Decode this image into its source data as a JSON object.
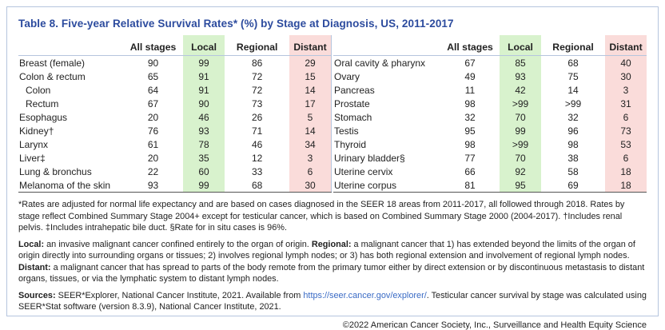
{
  "title": "Table 8. Five-year Relative Survival Rates* (%) by Stage at Diagnosis, US, 2011-2017",
  "colors": {
    "accent_blue": "#2c4b9e",
    "local_green": "#d8f2cd",
    "distant_pink": "#fadcda",
    "rule_blue": "#b5c5de",
    "table_bottom_line": "#555555",
    "link_blue": "#3a6bc5",
    "text": "#222222"
  },
  "table": {
    "columns": [
      "All stages",
      "Local",
      "Regional",
      "Distant"
    ],
    "left_rows": [
      {
        "label": "Breast (female)",
        "indent": false,
        "values": [
          "90",
          "99",
          "86",
          "29"
        ]
      },
      {
        "label": "Colon & rectum",
        "indent": false,
        "values": [
          "65",
          "91",
          "72",
          "15"
        ]
      },
      {
        "label": "Colon",
        "indent": true,
        "values": [
          "64",
          "91",
          "72",
          "14"
        ]
      },
      {
        "label": "Rectum",
        "indent": true,
        "values": [
          "67",
          "90",
          "73",
          "17"
        ]
      },
      {
        "label": "Esophagus",
        "indent": false,
        "values": [
          "20",
          "46",
          "26",
          "5"
        ]
      },
      {
        "label": "Kidney†",
        "indent": false,
        "values": [
          "76",
          "93",
          "71",
          "14"
        ]
      },
      {
        "label": "Larynx",
        "indent": false,
        "values": [
          "61",
          "78",
          "46",
          "34"
        ]
      },
      {
        "label": "Liver‡",
        "indent": false,
        "values": [
          "20",
          "35",
          "12",
          "3"
        ]
      },
      {
        "label": "Lung & bronchus",
        "indent": false,
        "values": [
          "22",
          "60",
          "33",
          "6"
        ]
      },
      {
        "label": "Melanoma of the skin",
        "indent": false,
        "values": [
          "93",
          "99",
          "68",
          "30"
        ]
      }
    ],
    "right_rows": [
      {
        "label": "Oral cavity & pharynx",
        "indent": false,
        "values": [
          "67",
          "85",
          "68",
          "40"
        ]
      },
      {
        "label": "Ovary",
        "indent": false,
        "values": [
          "49",
          "93",
          "75",
          "30"
        ]
      },
      {
        "label": "Pancreas",
        "indent": false,
        "values": [
          "11",
          "42",
          "14",
          "3"
        ]
      },
      {
        "label": "Prostate",
        "indent": false,
        "values": [
          "98",
          ">99",
          ">99",
          "31"
        ]
      },
      {
        "label": "Stomach",
        "indent": false,
        "values": [
          "32",
          "70",
          "32",
          "6"
        ]
      },
      {
        "label": "Testis",
        "indent": false,
        "values": [
          "95",
          "99",
          "96",
          "73"
        ]
      },
      {
        "label": "Thyroid",
        "indent": false,
        "values": [
          "98",
          ">99",
          "98",
          "53"
        ]
      },
      {
        "label": "Urinary bladder§",
        "indent": false,
        "values": [
          "77",
          "70",
          "38",
          "6"
        ]
      },
      {
        "label": "Uterine cervix",
        "indent": false,
        "values": [
          "66",
          "92",
          "58",
          "18"
        ]
      },
      {
        "label": "Uterine corpus",
        "indent": false,
        "values": [
          "81",
          "95",
          "69",
          "18"
        ]
      }
    ]
  },
  "footnotes": {
    "rates_note": "*Rates are adjusted for normal life expectancy and are based on cases diagnosed in the SEER 18 areas from 2011-2017, all followed through 2018. Rates by stage reflect Combined Summary Stage 2004+ except for testicular cancer, which is based on Combined Summary Stage 2000 (2004-2017). †Includes renal pelvis. ‡Includes intrahepatic bile duct. §Rate for in situ cases is 96%.",
    "definitions": [
      {
        "t": "Local:",
        "b": true
      },
      {
        "t": " an invasive malignant cancer confined entirely to the organ of origin. "
      },
      {
        "t": "Regional:",
        "b": true
      },
      {
        "t": " a malignant cancer that 1) has extended beyond the limits of the organ of origin directly into surrounding organs or tissues; 2) involves regional lymph nodes; or 3) has both regional extension and involvement of regional lymph nodes. "
      },
      {
        "t": "Distant:",
        "b": true
      },
      {
        "t": " a malignant cancer that has spread to parts of the body remote from the primary tumor either by direct extension or by discontinuous metastasis to distant organs, tissues, or via the lymphatic system to distant lymph nodes."
      }
    ],
    "sources": [
      {
        "t": "Sources:",
        "b": true
      },
      {
        "t": " SEER*Explorer, National Cancer Institute, 2021. Available from "
      },
      {
        "t": "https://seer.cancer.gov/explorer/",
        "link": true
      },
      {
        "t": ". Testicular cancer survival by stage was calculated using SEER*Stat software (version 8.3.9), National Cancer Institute, 2021."
      }
    ]
  },
  "copyright": "©2022 American Cancer Society, Inc., Surveillance and Health Equity Science"
}
